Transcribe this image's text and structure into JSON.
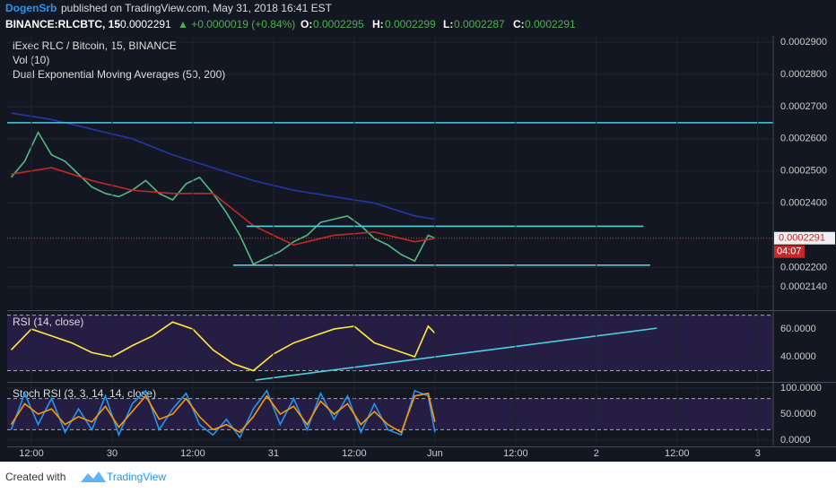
{
  "header": {
    "author": "DogenSrb",
    "published": "published on TradingView.com, May 31, 2018 16:41 EST",
    "symbol": "BINANCE:RLCBTC, 15",
    "price": "0.0002291",
    "change": "▲ +0.0000019 (+0.84%)",
    "o_label": "O:",
    "o": "0.0002295",
    "h_label": "H:",
    "h": "0.0002299",
    "l_label": "L:",
    "l": "0.0002287",
    "c_label": "C:",
    "c": "0.0002291"
  },
  "footer": {
    "created": "Created with",
    "brand": "TradingView"
  },
  "chart_data": [
    {
      "type": "line",
      "legend": [
        "iExec RLC / Bitcoin, 15, BINANCE",
        "Vol (10)",
        "Dual Exponential Moving Averages (50, 200)"
      ],
      "xlim": [
        8.4,
        122.3
      ],
      "ylim": [
        0.000207,
        0.000292
      ],
      "yticks": [
        {
          "value": 0.00029,
          "label": "0.0002900"
        },
        {
          "value": 0.00028,
          "label": "0.0002800"
        },
        {
          "value": 0.00027,
          "label": "0.0002700"
        },
        {
          "value": 0.00026,
          "label": "0.0002600"
        },
        {
          "value": 0.00025,
          "label": "0.0002500"
        },
        {
          "value": 0.00024,
          "label": "0.0002400"
        },
        {
          "value": 0.00022,
          "label": "0.0002200"
        },
        {
          "value": 0.000214,
          "label": "0.0002140"
        }
      ],
      "last": {
        "value": 0.0002291,
        "label": "0.0002291",
        "countdown": "04:07"
      },
      "series": [
        {
          "color": "#53b987",
          "x": [
            9,
            11,
            13,
            15,
            17,
            19,
            21,
            23,
            25,
            27,
            29,
            31,
            33,
            35,
            37,
            39,
            41,
            43,
            45,
            47,
            49,
            51,
            53,
            55,
            57,
            59,
            61,
            63,
            65,
            67,
            69,
            71,
            72
          ],
          "values": [
            0.000248,
            0.000253,
            0.000262,
            0.000255,
            0.000253,
            0.000249,
            0.000245,
            0.000243,
            0.000242,
            0.000244,
            0.000247,
            0.000243,
            0.000241,
            0.000246,
            0.000248,
            0.000243,
            0.000237,
            0.00023,
            0.000221,
            0.000223,
            0.000225,
            0.000228,
            0.00023,
            0.000234,
            0.000235,
            0.000236,
            0.000233,
            0.000229,
            0.000227,
            0.000224,
            0.000222,
            0.00023,
            0.0002291
          ]
        },
        {
          "color": "#c62828",
          "x": [
            9,
            15,
            21,
            27,
            33,
            39,
            45,
            51,
            57,
            63,
            69,
            72
          ],
          "values": [
            0.000249,
            0.000251,
            0.000247,
            0.000244,
            0.000243,
            0.000243,
            0.000233,
            0.000227,
            0.00023,
            0.000231,
            0.000228,
            0.000229
          ]
        },
        {
          "color": "#2636a8",
          "x": [
            9,
            15,
            21,
            27,
            33,
            39,
            45,
            51,
            57,
            63,
            69,
            72
          ],
          "values": [
            0.000268,
            0.000266,
            0.000263,
            0.00026,
            0.000255,
            0.000251,
            0.000247,
            0.000244,
            0.000242,
            0.00024,
            0.000236,
            0.000235
          ]
        },
        {
          "color": "#4dd0e1",
          "x": [
            8.4,
            122.3
          ],
          "values": [
            0.000265,
            0.000265
          ]
        },
        {
          "color": "#4dd0e1",
          "x": [
            44,
            103
          ],
          "values": [
            0.0002328,
            0.0002328
          ]
        },
        {
          "color": "#4dd0e1",
          "x": [
            42,
            104
          ],
          "values": [
            0.0002207,
            0.0002207
          ]
        }
      ]
    },
    {
      "type": "line",
      "legend": [
        "RSI (14, close)"
      ],
      "xlim": [
        8.4,
        122.3
      ],
      "ylim": [
        22.6,
        72.3
      ],
      "yticks": [
        {
          "value": 60,
          "label": "60.0000"
        },
        {
          "value": 40,
          "label": "40.0000"
        }
      ],
      "band": [
        30,
        70
      ],
      "series": [
        {
          "color": "#ffeb3b",
          "x": [
            9,
            12,
            15,
            18,
            21,
            24,
            27,
            30,
            33,
            36,
            39,
            42,
            45,
            48,
            51,
            54,
            57,
            60,
            63,
            66,
            69,
            71,
            72
          ],
          "values": [
            45,
            60,
            55,
            50,
            43,
            40,
            48,
            55,
            65,
            60,
            45,
            35,
            30,
            42,
            50,
            55,
            60,
            62,
            50,
            45,
            40,
            62,
            57
          ]
        },
        {
          "color": "#4dd0e1",
          "x": [
            45.3,
            105
          ],
          "values": [
            23.2,
            60.6
          ]
        }
      ]
    },
    {
      "type": "line",
      "legend": [
        "Stoch RSI (3, 3, 14, 14, close)"
      ],
      "xlim": [
        8.4,
        122.3
      ],
      "ylim": [
        -10.3,
        108.6
      ],
      "yticks": [
        {
          "value": 100,
          "label": "100.0000"
        },
        {
          "value": 50,
          "label": "50.0000"
        },
        {
          "value": 0,
          "label": "0.0000"
        }
      ],
      "band": [
        20,
        80
      ],
      "xticks": [
        {
          "value": 12,
          "label": "12:00"
        },
        {
          "value": 24,
          "label": "30"
        },
        {
          "value": 36,
          "label": "12:00"
        },
        {
          "value": 48,
          "label": "31"
        },
        {
          "value": 60,
          "label": "12:00"
        },
        {
          "value": 72,
          "label": "Jun"
        },
        {
          "value": 84,
          "label": "12:00"
        },
        {
          "value": 96,
          "label": "2"
        },
        {
          "value": 108,
          "label": "12:00"
        },
        {
          "value": 120,
          "label": "3"
        }
      ],
      "series": [
        {
          "color": "#2196f3",
          "x": [
            9,
            11,
            13,
            15,
            17,
            19,
            21,
            23,
            25,
            27,
            29,
            31,
            33,
            35,
            37,
            39,
            41,
            43,
            45,
            47,
            49,
            51,
            53,
            55,
            57,
            59,
            61,
            63,
            65,
            67,
            69,
            71,
            72
          ],
          "values": [
            20,
            90,
            30,
            80,
            15,
            60,
            20,
            85,
            10,
            70,
            95,
            20,
            60,
            90,
            30,
            10,
            40,
            5,
            60,
            95,
            30,
            80,
            20,
            90,
            40,
            85,
            15,
            70,
            20,
            10,
            95,
            85,
            15
          ]
        },
        {
          "color": "#ff9800",
          "x": [
            9,
            11,
            13,
            15,
            17,
            19,
            21,
            23,
            25,
            27,
            29,
            31,
            33,
            35,
            37,
            39,
            41,
            43,
            45,
            47,
            49,
            51,
            53,
            55,
            57,
            59,
            61,
            63,
            65,
            67,
            69,
            71,
            72
          ],
          "values": [
            30,
            70,
            50,
            60,
            30,
            45,
            35,
            65,
            25,
            55,
            85,
            40,
            50,
            80,
            45,
            20,
            30,
            15,
            45,
            85,
            50,
            65,
            30,
            75,
            50,
            70,
            30,
            55,
            30,
            15,
            85,
            90,
            35
          ]
        }
      ]
    }
  ]
}
